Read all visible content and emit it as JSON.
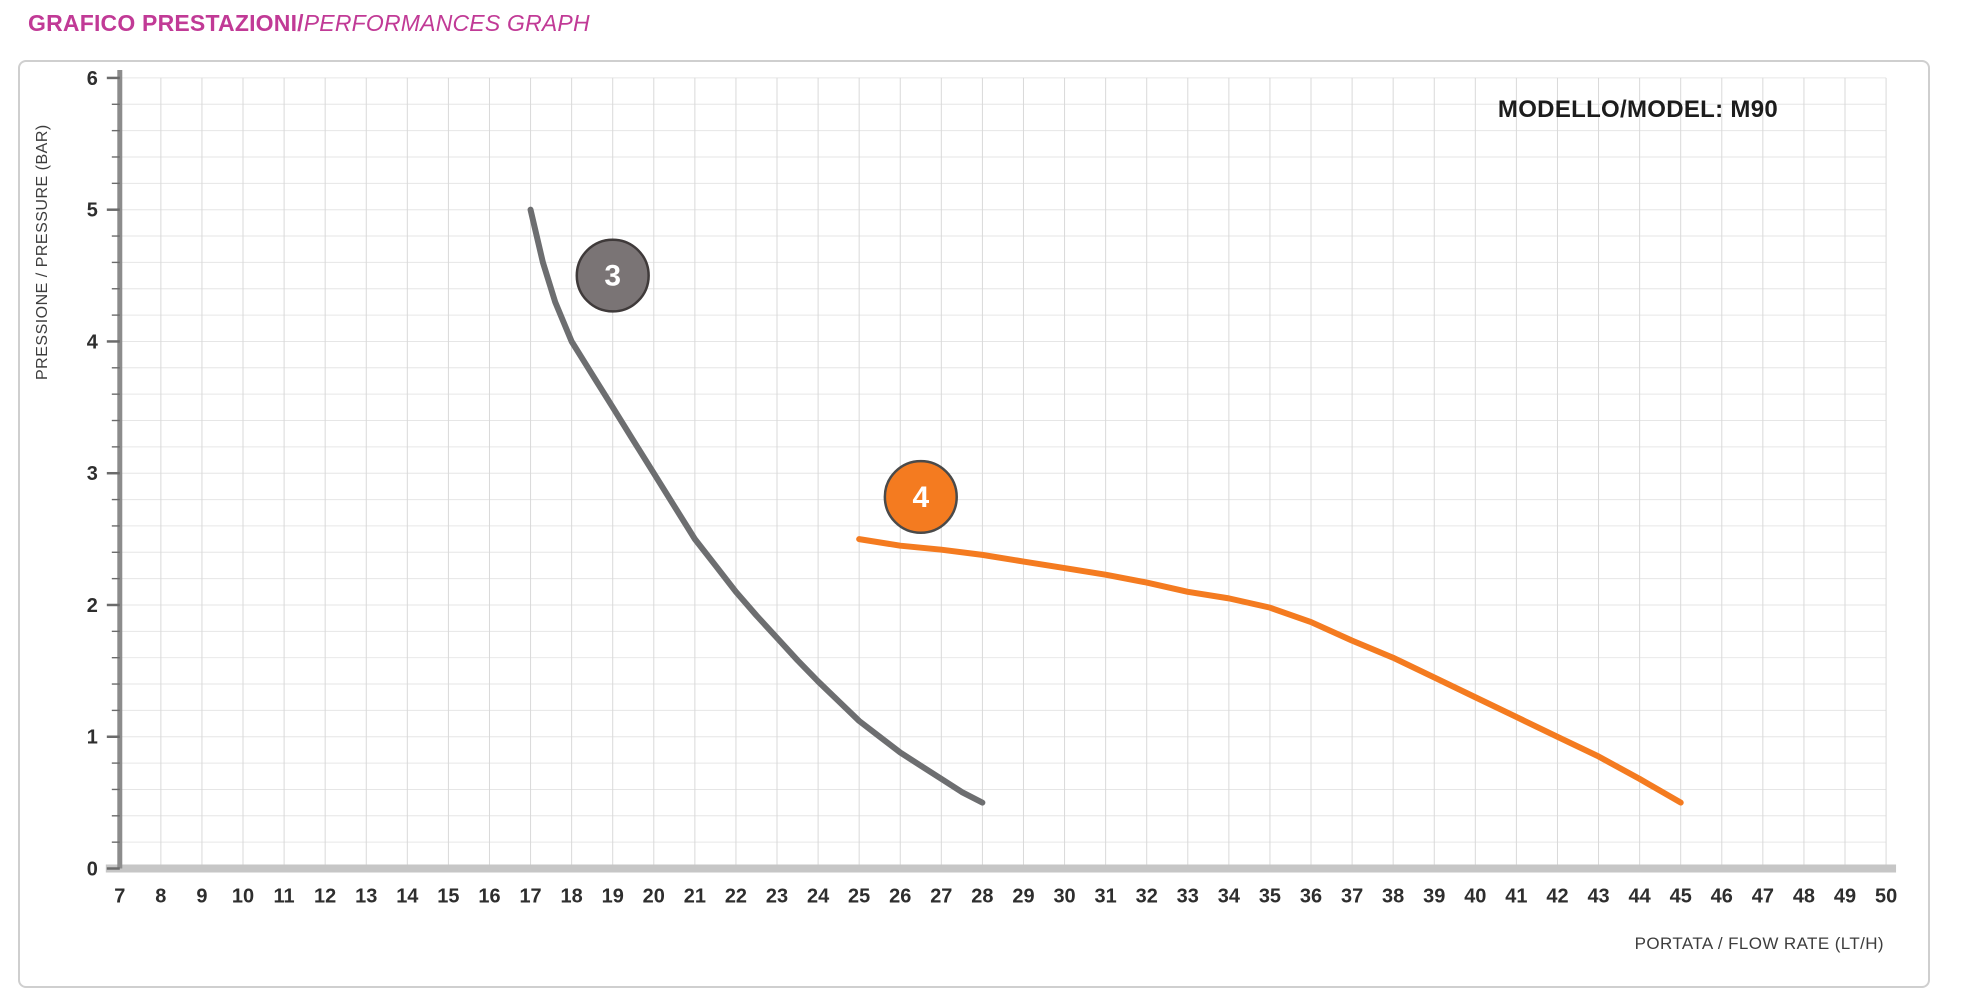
{
  "page": {
    "title_it": "GRAFICO PRESTAZIONI/",
    "title_en": "PERFORMANCES GRAPH",
    "accent_color": "#c13a96"
  },
  "chart": {
    "model_label": "MODELLO/MODEL: M90",
    "xlabel": "PORTATA / FLOW RATE (LT/H)",
    "ylabel": "PRESSIONE / PRESSURE (BAR)"
  },
  "chart_data": {
    "type": "line",
    "title": "MODELLO/MODEL: M90",
    "xlabel": "PORTATA / FLOW RATE (LT/H)",
    "ylabel": "PRESSIONE / PRESSURE (BAR)",
    "xlim": [
      7,
      50
    ],
    "ylim": [
      0,
      6
    ],
    "x_tick_step": 1,
    "y_tick_step": 1,
    "y_minor_step": 0.2,
    "grid": true,
    "legend_position": "none",
    "series": [
      {
        "name": "3",
        "color": "#6d6e70",
        "points": [
          [
            17,
            5.0
          ],
          [
            17.3,
            4.6
          ],
          [
            17.6,
            4.3
          ],
          [
            18,
            4.0
          ],
          [
            18.3,
            3.85
          ],
          [
            18.7,
            3.65
          ],
          [
            19,
            3.5
          ],
          [
            19.5,
            3.25
          ],
          [
            20,
            3.0
          ],
          [
            20.5,
            2.75
          ],
          [
            21,
            2.5
          ],
          [
            21.5,
            2.3
          ],
          [
            22,
            2.1
          ],
          [
            22.5,
            1.92
          ],
          [
            23,
            1.75
          ],
          [
            23.5,
            1.58
          ],
          [
            24,
            1.42
          ],
          [
            24.5,
            1.27
          ],
          [
            25,
            1.12
          ],
          [
            25.5,
            1.0
          ],
          [
            26,
            0.88
          ],
          [
            26.5,
            0.78
          ],
          [
            27,
            0.68
          ],
          [
            27.5,
            0.58
          ],
          [
            28,
            0.5
          ]
        ]
      },
      {
        "name": "4",
        "color": "#f47b20",
        "points": [
          [
            25,
            2.5
          ],
          [
            26,
            2.45
          ],
          [
            27,
            2.42
          ],
          [
            28,
            2.38
          ],
          [
            29,
            2.33
          ],
          [
            30,
            2.28
          ],
          [
            31,
            2.23
          ],
          [
            32,
            2.17
          ],
          [
            33,
            2.1
          ],
          [
            34,
            2.05
          ],
          [
            35,
            1.98
          ],
          [
            36,
            1.87
          ],
          [
            37,
            1.73
          ],
          [
            38,
            1.6
          ],
          [
            39,
            1.45
          ],
          [
            40,
            1.3
          ],
          [
            41,
            1.15
          ],
          [
            42,
            1.0
          ],
          [
            43,
            0.85
          ],
          [
            44,
            0.68
          ],
          [
            45,
            0.5
          ]
        ]
      }
    ],
    "markers": [
      {
        "label": "3",
        "x": 19,
        "y": 4.5,
        "fill": "#7a7475",
        "stroke": "#3f3a3a"
      },
      {
        "label": "4",
        "x": 26.5,
        "y": 2.82,
        "fill": "#f47b20",
        "stroke": "#4a4a4a"
      }
    ]
  }
}
